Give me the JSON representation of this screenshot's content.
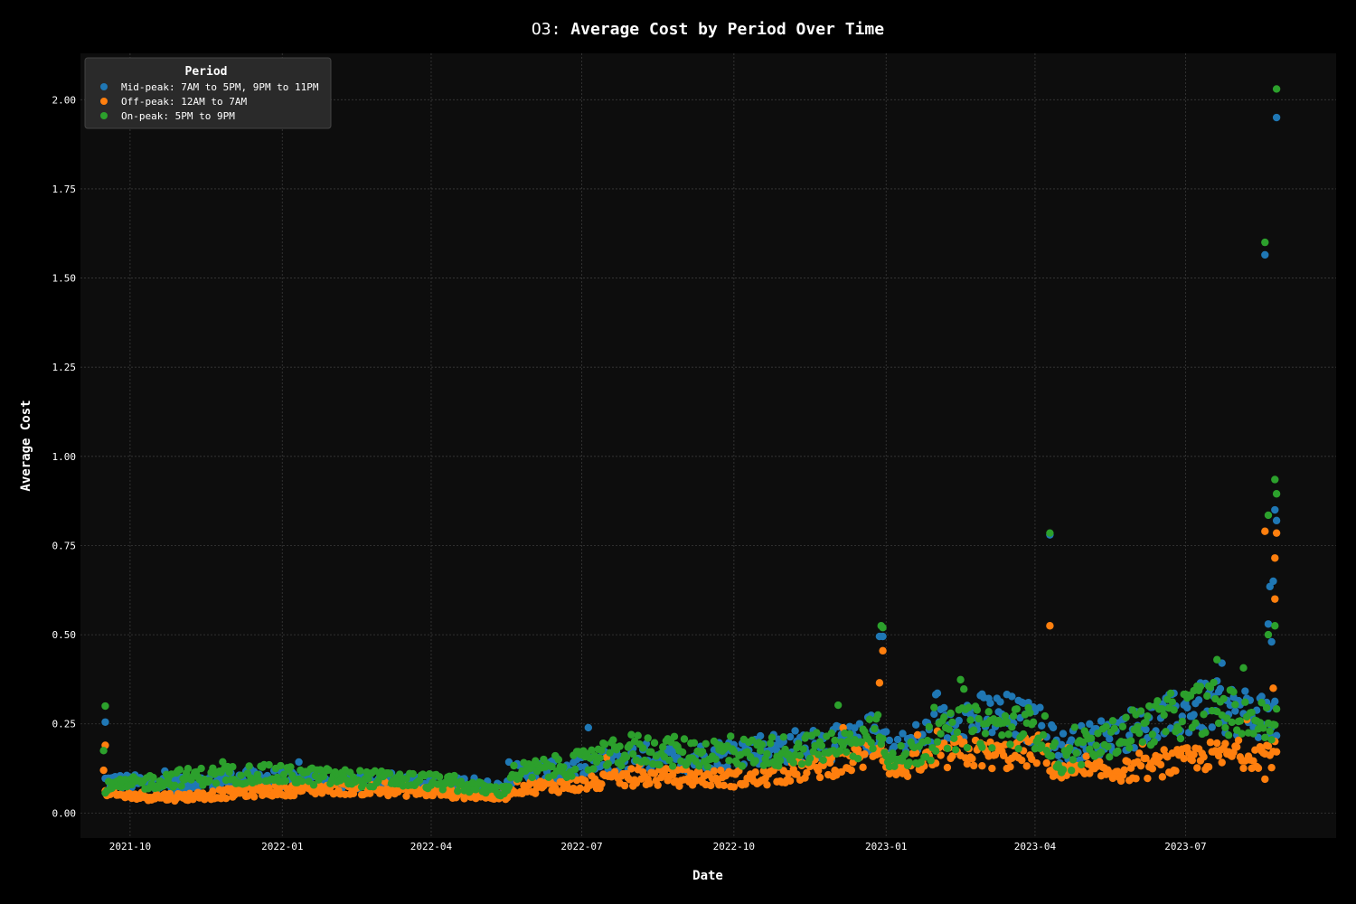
{
  "chart_data": {
    "type": "scatter",
    "title_prefix": "O3:",
    "title": "Average Cost by Period Over Time",
    "xlabel": "Date",
    "ylabel": "Average Cost",
    "xlim": [
      "2021-09-01",
      "2023-09-30"
    ],
    "ylim": [
      -0.07,
      2.13
    ],
    "x_ticks": [
      "2021-10",
      "2022-01",
      "2022-04",
      "2022-07",
      "2022-10",
      "2023-01",
      "2023-04",
      "2023-07"
    ],
    "y_ticks": [
      "0.00",
      "0.25",
      "0.50",
      "0.75",
      "1.00",
      "1.25",
      "1.50",
      "1.75",
      "2.00"
    ],
    "grid": true,
    "legend": {
      "title": "Period",
      "position": "top-left"
    },
    "date_range": [
      "2021-09-16",
      "2023-08-25"
    ],
    "series": [
      {
        "name": "Mid-peak: 7AM to 5PM, 9PM to 11PM",
        "color": "#1f77b4",
        "trend": [
          [
            "2021-09-16",
            0.09
          ],
          [
            "2021-11-01",
            0.08
          ],
          [
            "2021-12-15",
            0.1
          ],
          [
            "2022-02-01",
            0.09
          ],
          [
            "2022-04-01",
            0.085
          ],
          [
            "2022-05-15",
            0.07
          ],
          [
            "2022-05-20",
            0.11
          ],
          [
            "2022-07-01",
            0.13
          ],
          [
            "2022-08-01",
            0.16
          ],
          [
            "2022-09-01",
            0.15
          ],
          [
            "2022-10-15",
            0.18
          ],
          [
            "2022-12-15",
            0.2
          ],
          [
            "2022-12-28",
            0.24
          ],
          [
            "2023-01-05",
            0.17
          ],
          [
            "2023-02-15",
            0.27
          ],
          [
            "2023-03-15",
            0.27
          ],
          [
            "2023-04-05",
            0.24
          ],
          [
            "2023-04-15",
            0.18
          ],
          [
            "2023-06-01",
            0.24
          ],
          [
            "2023-07-15",
            0.3
          ],
          [
            "2023-08-25",
            0.27
          ]
        ],
        "outliers": [
          [
            "2021-09-16",
            0.255
          ],
          [
            "2022-12-28",
            0.495
          ],
          [
            "2022-12-30",
            0.495
          ],
          [
            "2023-04-10",
            0.78
          ],
          [
            "2023-08-18",
            1.565
          ],
          [
            "2023-08-20",
            0.53
          ],
          [
            "2023-08-21",
            0.635
          ],
          [
            "2023-08-23",
            0.65
          ],
          [
            "2023-08-24",
            0.85
          ],
          [
            "2023-08-25",
            1.95
          ],
          [
            "2023-08-25",
            0.82
          ],
          [
            "2023-08-22",
            0.48
          ]
        ]
      },
      {
        "name": "Off-peak: 12AM to 7AM",
        "color": "#ff7f0e",
        "trend": [
          [
            "2021-09-16",
            0.05
          ],
          [
            "2021-11-01",
            0.045
          ],
          [
            "2021-12-15",
            0.06
          ],
          [
            "2022-02-01",
            0.07
          ],
          [
            "2022-04-01",
            0.06
          ],
          [
            "2022-05-15",
            0.045
          ],
          [
            "2022-05-20",
            0.07
          ],
          [
            "2022-07-01",
            0.08
          ],
          [
            "2022-08-01",
            0.1
          ],
          [
            "2022-09-01",
            0.1
          ],
          [
            "2022-10-15",
            0.095
          ],
          [
            "2022-12-15",
            0.15
          ],
          [
            "2022-12-28",
            0.2
          ],
          [
            "2023-01-05",
            0.12
          ],
          [
            "2023-02-15",
            0.17
          ],
          [
            "2023-03-15",
            0.16
          ],
          [
            "2023-04-05",
            0.18
          ],
          [
            "2023-04-15",
            0.11
          ],
          [
            "2023-06-01",
            0.12
          ],
          [
            "2023-07-15",
            0.16
          ],
          [
            "2023-08-25",
            0.17
          ]
        ],
        "outliers": [
          [
            "2021-09-16",
            0.19
          ],
          [
            "2021-09-15",
            0.12
          ],
          [
            "2022-12-28",
            0.365
          ],
          [
            "2022-12-30",
            0.455
          ],
          [
            "2023-04-10",
            0.525
          ],
          [
            "2023-08-18",
            0.79
          ],
          [
            "2023-08-24",
            0.715
          ],
          [
            "2023-08-24",
            0.6
          ],
          [
            "2023-08-25",
            0.785
          ],
          [
            "2023-08-23",
            0.35
          ],
          [
            "2023-08-18",
            0.095
          ]
        ]
      },
      {
        "name": "On-peak: 5PM to 9PM",
        "color": "#2ca02c",
        "trend": [
          [
            "2021-09-16",
            0.07
          ],
          [
            "2021-11-01",
            0.1
          ],
          [
            "2021-12-15",
            0.11
          ],
          [
            "2022-02-01",
            0.1
          ],
          [
            "2022-04-01",
            0.09
          ],
          [
            "2022-05-15",
            0.06
          ],
          [
            "2022-05-20",
            0.11
          ],
          [
            "2022-07-01",
            0.14
          ],
          [
            "2022-08-01",
            0.18
          ],
          [
            "2022-09-01",
            0.17
          ],
          [
            "2022-10-15",
            0.17
          ],
          [
            "2022-12-15",
            0.19
          ],
          [
            "2022-12-28",
            0.25
          ],
          [
            "2023-01-05",
            0.14
          ],
          [
            "2023-02-15",
            0.24
          ],
          [
            "2023-03-15",
            0.24
          ],
          [
            "2023-04-05",
            0.24
          ],
          [
            "2023-04-15",
            0.14
          ],
          [
            "2023-06-01",
            0.24
          ],
          [
            "2023-07-15",
            0.3
          ],
          [
            "2023-08-25",
            0.24
          ]
        ],
        "outliers": [
          [
            "2021-09-16",
            0.3
          ],
          [
            "2021-09-15",
            0.175
          ],
          [
            "2022-12-29",
            0.525
          ],
          [
            "2022-12-30",
            0.52
          ],
          [
            "2023-04-10",
            0.785
          ],
          [
            "2023-08-18",
            1.6
          ],
          [
            "2023-08-20",
            0.835
          ],
          [
            "2023-08-24",
            0.935
          ],
          [
            "2023-08-25",
            0.895
          ],
          [
            "2023-08-25",
            2.03
          ],
          [
            "2023-08-24",
            0.525
          ],
          [
            "2023-08-20",
            0.5
          ],
          [
            "2023-07-20",
            0.43
          ]
        ]
      }
    ]
  }
}
